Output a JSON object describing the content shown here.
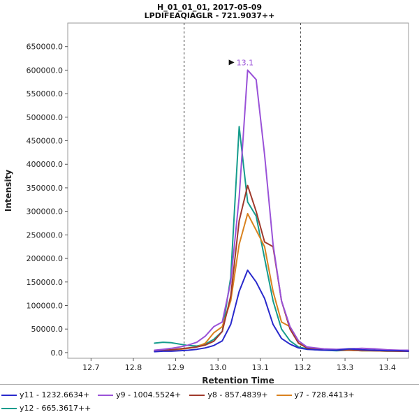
{
  "chart_data": {
    "type": "line",
    "title": "H_01_01_01, 2017-05-09",
    "subtitle": "LPDIFEAQIAGLR - 721.9037++",
    "xlabel": "Retention Time",
    "ylabel": "Intensity",
    "xlim": [
      12.645,
      13.45
    ],
    "ylim": [
      -12000,
      700000
    ],
    "x_ticks": [
      12.7,
      12.8,
      12.9,
      13.0,
      13.1,
      13.2,
      13.3,
      13.4
    ],
    "y_ticks": [
      0,
      50000,
      100000,
      150000,
      200000,
      250000,
      300000,
      350000,
      400000,
      450000,
      500000,
      550000,
      600000,
      650000
    ],
    "boundaries": [
      12.92,
      13.195
    ],
    "annotation": {
      "text": "13.1",
      "x": 13.07,
      "y": 600000,
      "color": "#9a52d8"
    },
    "x": [
      12.85,
      12.87,
      12.89,
      12.91,
      12.93,
      12.95,
      12.97,
      12.99,
      13.01,
      13.03,
      13.05,
      13.07,
      13.09,
      13.11,
      13.13,
      13.15,
      13.17,
      13.19,
      13.21,
      13.23,
      13.25,
      13.28,
      13.31,
      13.34,
      13.37,
      13.4,
      13.43,
      13.45
    ],
    "series": [
      {
        "name": "y11",
        "label": "y11 - 1232.6634+",
        "color": "#2929cc",
        "y": [
          2000,
          3000,
          3000,
          4000,
          5000,
          7000,
          10000,
          15000,
          25000,
          60000,
          130000,
          175000,
          150000,
          115000,
          60000,
          30000,
          18000,
          10000,
          7000,
          6000,
          5000,
          5000,
          8000,
          6000,
          5000,
          4000,
          4000,
          3000
        ]
      },
      {
        "name": "y9",
        "label": "y9 - 1004.5524+",
        "color": "#9a52d8",
        "y": [
          5000,
          7000,
          9000,
          12000,
          16000,
          22000,
          35000,
          55000,
          65000,
          150000,
          330000,
          600000,
          580000,
          420000,
          230000,
          110000,
          55000,
          25000,
          12000,
          10000,
          8000,
          7000,
          8000,
          9000,
          8000,
          6000,
          5000,
          5000
        ]
      },
      {
        "name": "y8",
        "label": "y8 - 857.4839+",
        "color": "#a03a2c",
        "y": [
          4000,
          5000,
          6000,
          8000,
          10000,
          12000,
          16000,
          24000,
          45000,
          120000,
          280000,
          355000,
          300000,
          235000,
          225000,
          110000,
          50000,
          20000,
          10000,
          8000,
          6000,
          5000,
          6000,
          5000,
          4000,
          4000,
          3000,
          3000
        ]
      },
      {
        "name": "y7",
        "label": "y7 - 728.4413+",
        "color": "#d9821f",
        "y": [
          3000,
          4000,
          5000,
          7000,
          9000,
          12000,
          20000,
          42000,
          55000,
          110000,
          230000,
          295000,
          260000,
          225000,
          130000,
          65000,
          55000,
          25000,
          10000,
          7000,
          6000,
          5000,
          5000,
          4000,
          4000,
          3000,
          3000,
          3000
        ]
      },
      {
        "name": "y12",
        "label": "y12 - 665.3617++",
        "color": "#169c8d",
        "y": [
          20000,
          22000,
          21000,
          18000,
          15000,
          14000,
          18000,
          28000,
          45000,
          160000,
          480000,
          320000,
          290000,
          200000,
          110000,
          50000,
          25000,
          12000,
          8000,
          6000,
          5000,
          4000,
          5000,
          4000,
          4000,
          3000,
          3000,
          3000
        ]
      }
    ]
  }
}
